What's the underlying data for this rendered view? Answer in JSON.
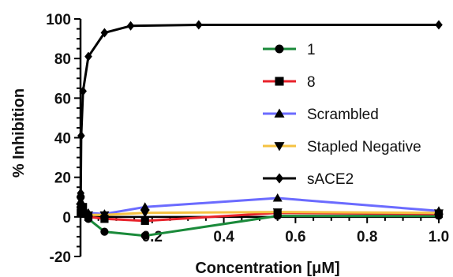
{
  "chart_data": {
    "type": "line",
    "xlabel": "Concentration [μM]",
    "ylabel": "% Inhibition",
    "xlim": [
      0,
      1.0
    ],
    "ylim": [
      -20,
      100
    ],
    "x_ticks": [
      "0.2",
      "0.4",
      "0.6",
      "0.8",
      "1.0"
    ],
    "y_ticks": [
      "-20",
      "0",
      "20",
      "40",
      "60",
      "80",
      "100"
    ],
    "grid": false,
    "legend_position": "right",
    "series": [
      {
        "name": "1",
        "color": "#1a8a3a",
        "marker": "circle",
        "x": [
          0.0006,
          0.002,
          0.007,
          0.022,
          0.067,
          0.18,
          0.55,
          1.0
        ],
        "y": [
          10,
          5,
          2,
          -1,
          -7.5,
          -9.5,
          0.5,
          0.5
        ]
      },
      {
        "name": "8",
        "color": "#e8222a",
        "marker": "square",
        "x": [
          0.0006,
          0.002,
          0.007,
          0.022,
          0.067,
          0.18,
          0.55,
          1.0
        ],
        "y": [
          2,
          4,
          5,
          0,
          -1,
          -2,
          2,
          1.5
        ]
      },
      {
        "name": "Scrambled",
        "color": "#6b6bff",
        "marker": "triangle-up",
        "x": [
          0.0006,
          0.002,
          0.007,
          0.022,
          0.067,
          0.18,
          0.55,
          1.0
        ],
        "y": [
          8,
          6,
          4,
          2,
          1.5,
          5,
          9.5,
          3
        ]
      },
      {
        "name": "Stapled Negative",
        "color": "#f5c242",
        "marker": "triangle-down",
        "x": [
          0.0006,
          0.002,
          0.007,
          0.022,
          0.067,
          0.18,
          0.55,
          1.0
        ],
        "y": [
          5,
          3,
          2,
          1,
          1,
          2,
          2.5,
          2
        ]
      },
      {
        "name": "sACE2",
        "color": "#000000",
        "marker": "diamond",
        "x": [
          0.0006,
          0.002,
          0.007,
          0.022,
          0.067,
          0.14,
          0.33,
          1.0
        ],
        "y": [
          12,
          41,
          63.5,
          81,
          93,
          96.5,
          97,
          97
        ]
      }
    ]
  }
}
